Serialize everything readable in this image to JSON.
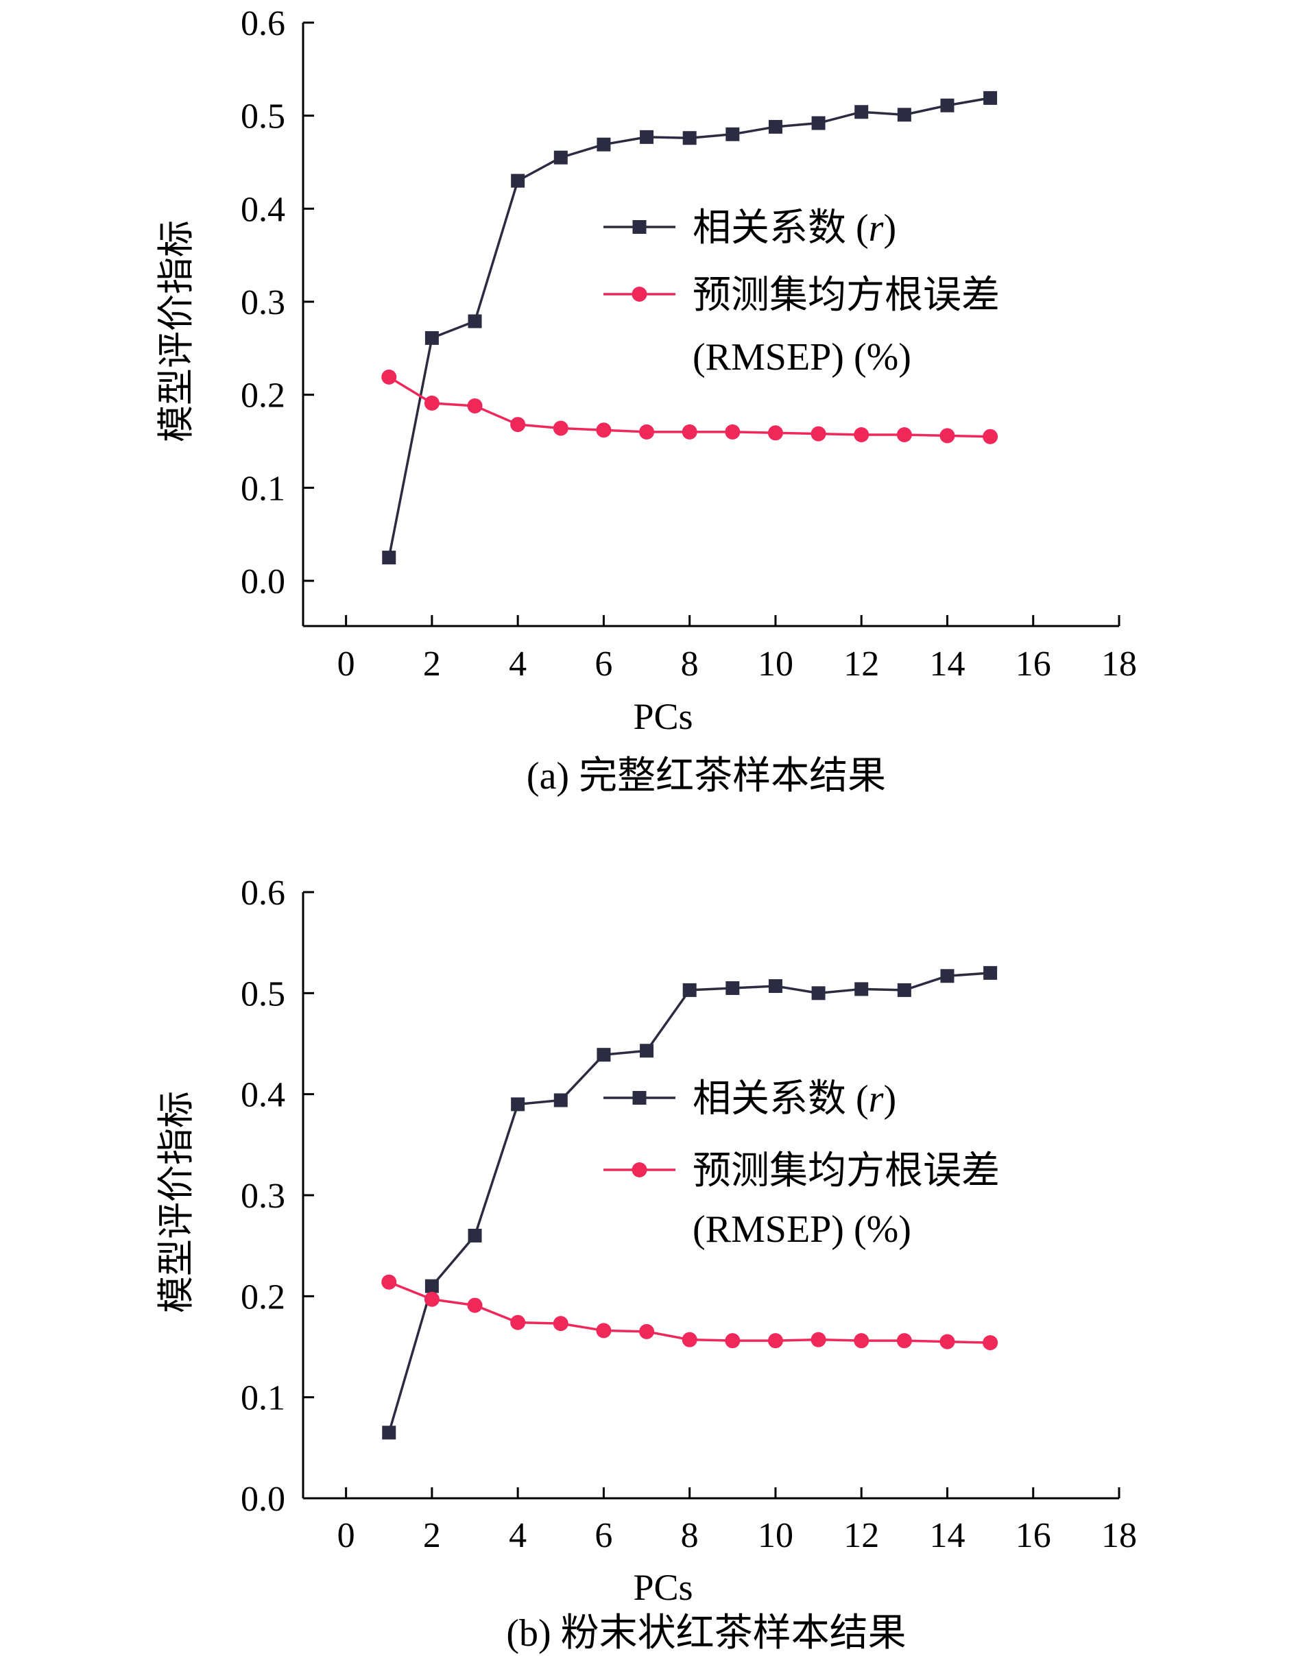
{
  "colors": {
    "series_r": "#2b2b42",
    "series_rmsep": "#f0285a",
    "axis": "#000000"
  },
  "chart_data": [
    {
      "type": "line",
      "caption": "(a) 完整红茶样本结果",
      "xlabel": "PCs",
      "ylabel": "模型评价指标",
      "xlim": [
        -1,
        18
      ],
      "ylim": [
        -0.05,
        0.6
      ],
      "xticks": [
        0,
        2,
        4,
        6,
        8,
        10,
        12,
        14,
        16,
        18
      ],
      "yticks": [
        0.0,
        0.1,
        0.2,
        0.3,
        0.4,
        0.5,
        0.6
      ],
      "xtick_labels": [
        "0",
        "2",
        "4",
        "6",
        "8",
        "10",
        "12",
        "14",
        "16",
        "18"
      ],
      "ytick_labels": [
        "0.0",
        "0.1",
        "0.2",
        "0.3",
        "0.4",
        "0.5",
        "0.6"
      ],
      "legend_position": "center-right",
      "series": [
        {
          "name": "相关系数 (r)",
          "name_main": "相关系数 (",
          "name_italic": "r",
          "name_end": ")",
          "marker": "square",
          "color": "#2b2b42",
          "x": [
            1,
            2,
            3,
            4,
            5,
            6,
            7,
            8,
            9,
            10,
            11,
            12,
            13,
            14,
            15
          ],
          "y": [
            0.025,
            0.261,
            0.279,
            0.43,
            0.455,
            0.469,
            0.477,
            0.476,
            0.48,
            0.488,
            0.492,
            0.504,
            0.501,
            0.511,
            0.519
          ]
        },
        {
          "name": "预测集均方根误差 (RMSEP) (%)",
          "name_line1": "预测集均方根误差",
          "name_line2": "(RMSEP) (%)",
          "marker": "circle",
          "color": "#f0285a",
          "x": [
            1,
            2,
            3,
            4,
            5,
            6,
            7,
            8,
            9,
            10,
            11,
            12,
            13,
            14,
            15
          ],
          "y": [
            0.219,
            0.191,
            0.188,
            0.168,
            0.164,
            0.162,
            0.16,
            0.16,
            0.16,
            0.159,
            0.158,
            0.157,
            0.157,
            0.156,
            0.155
          ]
        }
      ]
    },
    {
      "type": "line",
      "caption": "(b) 粉末状红茶样本结果",
      "xlabel": "PCs",
      "ylabel": "模型评价指标",
      "xlim": [
        -1,
        18
      ],
      "ylim": [
        0.0,
        0.6
      ],
      "xticks": [
        0,
        2,
        4,
        6,
        8,
        10,
        12,
        14,
        16,
        18
      ],
      "yticks": [
        0.0,
        0.1,
        0.2,
        0.3,
        0.4,
        0.5,
        0.6
      ],
      "xtick_labels": [
        "0",
        "2",
        "4",
        "6",
        "8",
        "10",
        "12",
        "14",
        "16",
        "18"
      ],
      "ytick_labels": [
        "0.0",
        "0.1",
        "0.2",
        "0.3",
        "0.4",
        "0.5",
        "0.6"
      ],
      "legend_position": "center-right",
      "series": [
        {
          "name": "相关系数 (r)",
          "name_main": "相关系数 (",
          "name_italic": "r",
          "name_end": ")",
          "marker": "square",
          "color": "#2b2b42",
          "x": [
            1,
            2,
            3,
            4,
            5,
            6,
            7,
            8,
            9,
            10,
            11,
            12,
            13,
            14,
            15
          ],
          "y": [
            0.065,
            0.21,
            0.26,
            0.39,
            0.394,
            0.439,
            0.443,
            0.503,
            0.505,
            0.507,
            0.5,
            0.504,
            0.503,
            0.517,
            0.52
          ]
        },
        {
          "name": "预测集均方根误差 (RMSEP) (%)",
          "name_line1": "预测集均方根误差",
          "name_line2": "(RMSEP) (%)",
          "marker": "circle",
          "color": "#f0285a",
          "x": [
            1,
            2,
            3,
            4,
            5,
            6,
            7,
            8,
            9,
            10,
            11,
            12,
            13,
            14,
            15
          ],
          "y": [
            0.214,
            0.197,
            0.191,
            0.174,
            0.173,
            0.166,
            0.165,
            0.157,
            0.156,
            0.156,
            0.157,
            0.156,
            0.156,
            0.155,
            0.154
          ]
        }
      ]
    }
  ]
}
